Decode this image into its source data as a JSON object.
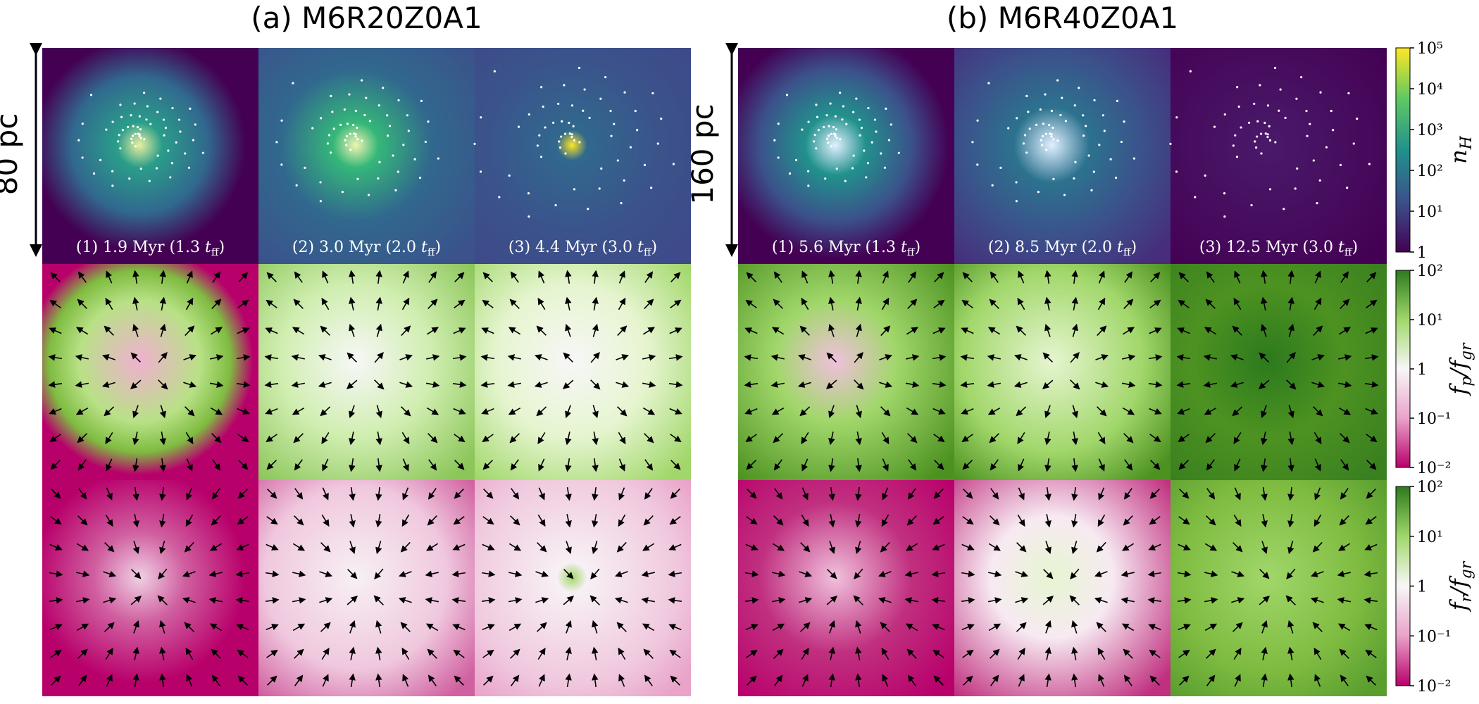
{
  "groups": [
    {
      "title": "(a) M6R20Z0A1",
      "scale": "80 pc",
      "labels": [
        [
          "(1) 1.9 Myr (1.3 ",
          "t",
          "ff",
          ")"
        ],
        [
          "(2) 3.0 Myr (2.0 ",
          "t",
          "ff",
          ")"
        ],
        [
          "(3) 4.4 Myr (3.0 ",
          "t",
          "ff",
          ")"
        ]
      ]
    },
    {
      "title": "(b) M6R40Z0A1",
      "scale": "160 pc",
      "labels": [
        [
          "(1) 5.6 Myr (1.3 ",
          "t",
          "ff",
          ")"
        ],
        [
          "(2) 8.5 Myr (2.0 ",
          "t",
          "ff",
          ")"
        ],
        [
          "(3) 12.5 Myr (3.0 ",
          "t",
          "ff",
          ")"
        ]
      ]
    }
  ],
  "colorbars": [
    {
      "label": [
        "n",
        "H"
      ],
      "ticks": [
        "10⁵",
        "10⁴",
        "10³",
        "10²",
        "10¹",
        "1"
      ]
    },
    {
      "label": [
        "f",
        "p",
        "/",
        "f",
        "gr"
      ],
      "ticks": [
        "10²",
        "10¹",
        "1",
        "10⁻¹",
        "10⁻²"
      ]
    },
    {
      "label": [
        "f",
        "r",
        "/",
        "f",
        "gr"
      ],
      "ticks": [
        "10²",
        "10¹",
        "1",
        "10⁻¹",
        "10⁻²"
      ]
    }
  ]
}
